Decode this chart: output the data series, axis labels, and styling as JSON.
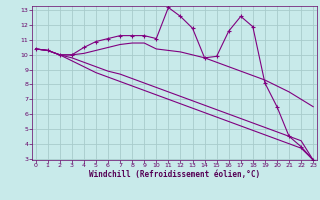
{
  "x": [
    0,
    1,
    2,
    3,
    4,
    5,
    6,
    7,
    8,
    9,
    10,
    11,
    12,
    13,
    14,
    15,
    16,
    17,
    18,
    19,
    20,
    21,
    22,
    23
  ],
  "line1": [
    10.4,
    10.3,
    10.0,
    10.0,
    10.5,
    10.9,
    11.1,
    11.3,
    11.3,
    11.3,
    11.1,
    13.2,
    12.6,
    11.8,
    9.8,
    9.9,
    11.6,
    12.6,
    11.9,
    8.1,
    6.5,
    4.5,
    3.8,
    2.9
  ],
  "line2": [
    10.4,
    10.3,
    10.0,
    10.0,
    10.1,
    10.3,
    10.5,
    10.7,
    10.8,
    10.8,
    10.4,
    10.3,
    10.2,
    10.0,
    9.8,
    9.5,
    9.2,
    8.9,
    8.6,
    8.3,
    7.9,
    7.5,
    7.0,
    6.5
  ],
  "line3": [
    10.4,
    10.3,
    10.0,
    9.8,
    9.5,
    9.2,
    8.9,
    8.7,
    8.4,
    8.1,
    7.8,
    7.5,
    7.2,
    6.9,
    6.6,
    6.3,
    6.0,
    5.7,
    5.4,
    5.1,
    4.8,
    4.5,
    4.2,
    2.9
  ],
  "line4": [
    10.4,
    10.3,
    10.0,
    9.6,
    9.2,
    8.8,
    8.5,
    8.2,
    7.9,
    7.6,
    7.3,
    7.0,
    6.7,
    6.4,
    6.1,
    5.8,
    5.5,
    5.2,
    4.9,
    4.6,
    4.3,
    4.0,
    3.7,
    2.9
  ],
  "line_color": "#800080",
  "bg_color": "#c8eaea",
  "grid_color": "#a8cccc",
  "xlabel": "Windchill (Refroidissement éolien,°C)",
  "ylim": [
    3,
    13
  ],
  "xlim": [
    0,
    23
  ],
  "yticks": [
    3,
    4,
    5,
    6,
    7,
    8,
    9,
    10,
    11,
    12,
    13
  ],
  "xticks": [
    0,
    1,
    2,
    3,
    4,
    5,
    6,
    7,
    8,
    9,
    10,
    11,
    12,
    13,
    14,
    15,
    16,
    17,
    18,
    19,
    20,
    21,
    22,
    23
  ],
  "marker": "+"
}
